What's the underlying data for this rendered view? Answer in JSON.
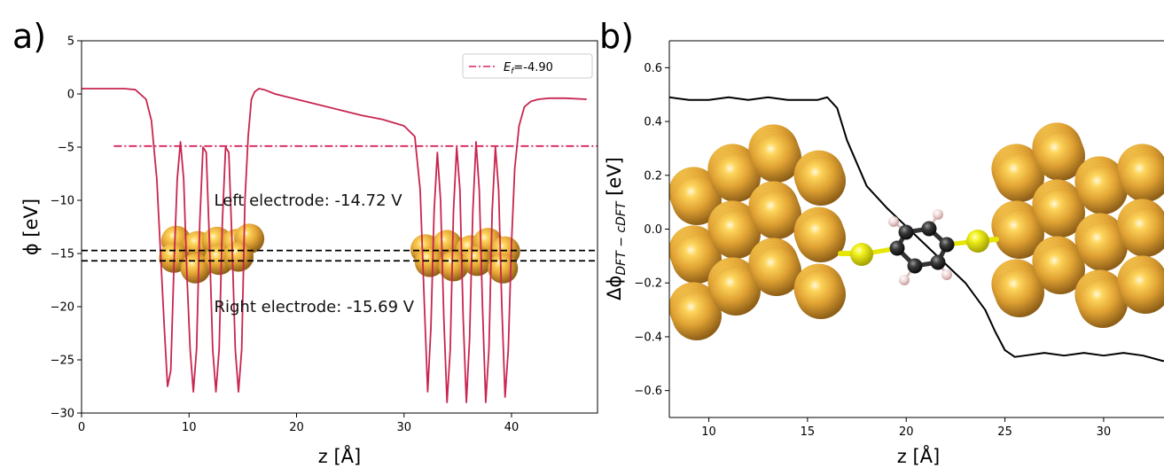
{
  "panel_labels": [
    "a)",
    "b)"
  ],
  "chart_data": [
    {
      "type": "line",
      "panel": "a)",
      "xlabel": "z [Å]",
      "ylabel": "ϕ [eV]",
      "xlim": [
        0,
        48
      ],
      "ylim": [
        -30,
        5
      ],
      "xticks": [
        0,
        10,
        20,
        30,
        40
      ],
      "yticks": [
        5,
        0,
        -5,
        -10,
        -15,
        -20,
        -25,
        -30
      ],
      "grid": false,
      "legend": {
        "placement": "top-right",
        "entries": [
          {
            "label": "E_f=-4.90",
            "label_main": "E",
            "label_sub": "f",
            "label_rest": "=-4.90",
            "color": "#d6245b",
            "style": "dash-dot"
          }
        ]
      },
      "series": [
        {
          "name": "potential",
          "color": "#c8254f",
          "x": [
            0,
            1,
            2,
            3,
            4,
            5,
            6,
            6.5,
            7,
            7.4,
            7.7,
            8.0,
            8.3,
            8.6,
            8.9,
            9.2,
            9.5,
            9.8,
            10.1,
            10.4,
            10.7,
            11.0,
            11.3,
            11.6,
            11.9,
            12.2,
            12.5,
            12.8,
            13.1,
            13.4,
            13.7,
            14.0,
            14.3,
            14.6,
            14.9,
            15.2,
            15.5,
            15.8,
            16.1,
            16.5,
            17,
            18,
            20,
            22,
            24,
            26,
            28,
            30,
            31,
            31.5,
            31.9,
            32.2,
            32.5,
            32.8,
            33.1,
            33.4,
            33.7,
            34.0,
            34.3,
            34.6,
            34.9,
            35.2,
            35.5,
            35.8,
            36.1,
            36.4,
            36.7,
            37.0,
            37.3,
            37.6,
            37.9,
            38.2,
            38.5,
            38.8,
            39.1,
            39.4,
            39.7,
            40.0,
            40.3,
            40.7,
            41.2,
            41.8,
            42.5,
            43.5,
            45,
            47
          ],
          "y": [
            0.5,
            0.5,
            0.5,
            0.5,
            0.5,
            0.4,
            -0.5,
            -2.5,
            -8,
            -16,
            -22,
            -27.5,
            -26,
            -16,
            -8,
            -4.5,
            -8,
            -17,
            -24,
            -28,
            -24,
            -12,
            -5,
            -5.5,
            -14,
            -24,
            -28,
            -24,
            -12,
            -5,
            -5.5,
            -14,
            -24,
            -28,
            -24,
            -10,
            -4,
            -0.5,
            0.2,
            0.5,
            0.4,
            0.0,
            -0.5,
            -1.0,
            -1.5,
            -2.0,
            -2.4,
            -3.0,
            -4.0,
            -9,
            -20,
            -28,
            -22,
            -11,
            -5.5,
            -10,
            -21,
            -29,
            -24,
            -11,
            -5,
            -9,
            -21,
            -29,
            -23,
            -11,
            -4.5,
            -9,
            -20,
            -29,
            -24,
            -11,
            -5,
            -9,
            -20,
            -28.5,
            -24,
            -14,
            -7,
            -3,
            -1.2,
            -0.7,
            -0.5,
            -0.4,
            -0.4,
            -0.5
          ]
        },
        {
          "name": "E_f",
          "color": "#d6245b",
          "style": "dash-dot",
          "x": [
            3,
            48
          ],
          "y": [
            -4.9,
            -4.9
          ]
        },
        {
          "name": "left-level",
          "color": "#000000",
          "style": "dashed",
          "x": [
            0,
            48
          ],
          "y": [
            -14.72,
            -14.72
          ]
        },
        {
          "name": "right-level",
          "color": "#000000",
          "style": "dashed",
          "x": [
            0,
            48
          ],
          "y": [
            -15.69,
            -15.69
          ]
        }
      ],
      "annotations": [
        {
          "text": "Left electrode: -14.72 V",
          "x": 12,
          "y": -10.5
        },
        {
          "text": "Right electrode: -15.69 V",
          "x": 12,
          "y": -20.5
        }
      ]
    },
    {
      "type": "line",
      "panel": "b)",
      "xlabel": "z [Å]",
      "ylabel": "ΔϕDFT−cDFT [eV]",
      "ylabel_main": "Δϕ",
      "ylabel_sub": "DFT − cDFT",
      "ylabel_unit": " [eV]",
      "xlim": [
        8,
        34
      ],
      "ylim": [
        -0.7,
        0.7
      ],
      "xticks": [
        10,
        15,
        20,
        25,
        30
      ],
      "yticks": [
        0.6,
        0.4,
        0.2,
        0.0,
        -0.2,
        -0.4,
        -0.6
      ],
      "ytick_labels": [
        "0.6",
        "0.4",
        "0.2",
        "0.0",
        "−0.2",
        "−0.4",
        "−0.6"
      ],
      "grid": false,
      "series": [
        {
          "name": "difference",
          "color": "#000000",
          "x": [
            8,
            9,
            10,
            11,
            12,
            13,
            14,
            15,
            15.5,
            16,
            16.5,
            17,
            18,
            19,
            20,
            21,
            22,
            23,
            24,
            24.5,
            25,
            25.5,
            26,
            27,
            28,
            29,
            30,
            31,
            32,
            33,
            34
          ],
          "y": [
            0.49,
            0.48,
            0.48,
            0.49,
            0.48,
            0.49,
            0.48,
            0.48,
            0.48,
            0.49,
            0.45,
            0.33,
            0.16,
            0.08,
            0.01,
            -0.06,
            -0.13,
            -0.2,
            -0.3,
            -0.38,
            -0.45,
            -0.475,
            -0.47,
            -0.46,
            -0.47,
            -0.46,
            -0.47,
            -0.46,
            -0.47,
            -0.49,
            -0.48
          ]
        }
      ]
    }
  ]
}
